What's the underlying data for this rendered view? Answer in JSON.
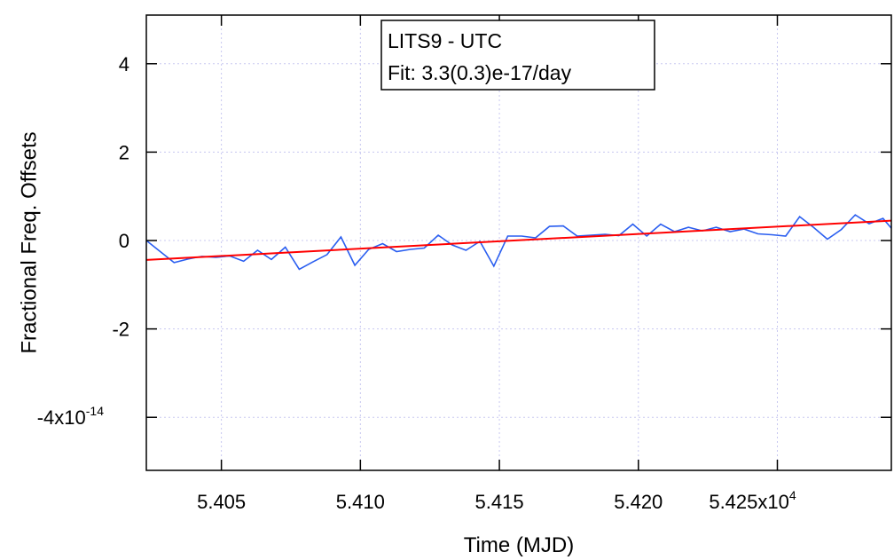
{
  "chart_data": {
    "type": "line",
    "xlabel": "Time (MJD)",
    "ylabel": "Fractional Freq. Offsets",
    "xlim": [
      54023,
      54291
    ],
    "ylim": [
      -5.2,
      5.1
    ],
    "y_tick_scale": "1e-14",
    "x_tick_scale": "1e4",
    "x_ticks": [
      {
        "value": 54050,
        "label": "5.405"
      },
      {
        "value": 54100,
        "label": "5.410"
      },
      {
        "value": 54150,
        "label": "5.415"
      },
      {
        "value": 54200,
        "label": "5.420"
      },
      {
        "value": 54250,
        "label": "5.425x10",
        "exp": "4"
      }
    ],
    "y_ticks": [
      {
        "value": 4,
        "label": "4"
      },
      {
        "value": 2,
        "label": "2"
      },
      {
        "value": 0,
        "label": "0"
      },
      {
        "value": -2,
        "label": "-2"
      },
      {
        "value": -4,
        "label": "-4x10",
        "exp": "-14"
      }
    ],
    "grid": true,
    "legend": {
      "line1": "LITS9 - UTC",
      "line2": "Fit:  3.3(0.3)e-17/day"
    },
    "series": [
      {
        "color": "#2a5ef0",
        "x": [
          54023,
          54028,
          54033,
          54038,
          54043,
          54048,
          54053,
          54058,
          54063,
          54068,
          54073,
          54078,
          54083,
          54088,
          54093,
          54098,
          54103,
          54108,
          54113,
          54118,
          54123,
          54128,
          54133,
          54138,
          54143,
          54148,
          54153,
          54158,
          54163,
          54168,
          54173,
          54178,
          54183,
          54188,
          54193,
          54198,
          54203,
          54208,
          54213,
          54218,
          54223,
          54228,
          54233,
          54238,
          54243,
          54248,
          54253,
          54258,
          54263,
          54268,
          54273,
          54278,
          54283,
          54288,
          54291
        ],
        "y": [
          0.0,
          -0.25,
          -0.5,
          -0.42,
          -0.36,
          -0.38,
          -0.35,
          -0.47,
          -0.22,
          -0.43,
          -0.15,
          -0.65,
          -0.48,
          -0.32,
          0.08,
          -0.56,
          -0.2,
          -0.07,
          -0.25,
          -0.2,
          -0.17,
          0.12,
          -0.1,
          -0.22,
          -0.02,
          -0.58,
          0.1,
          0.1,
          0.06,
          0.32,
          0.33,
          0.1,
          0.12,
          0.14,
          0.11,
          0.37,
          0.1,
          0.37,
          0.2,
          0.3,
          0.22,
          0.3,
          0.2,
          0.26,
          0.15,
          0.13,
          0.1,
          0.54,
          0.3,
          0.03,
          0.25,
          0.58,
          0.38,
          0.5,
          0.28
        ]
      },
      {
        "color": "#ff0000",
        "x": [
          54023,
          54291
        ],
        "y": [
          -0.44,
          0.45
        ]
      }
    ]
  }
}
